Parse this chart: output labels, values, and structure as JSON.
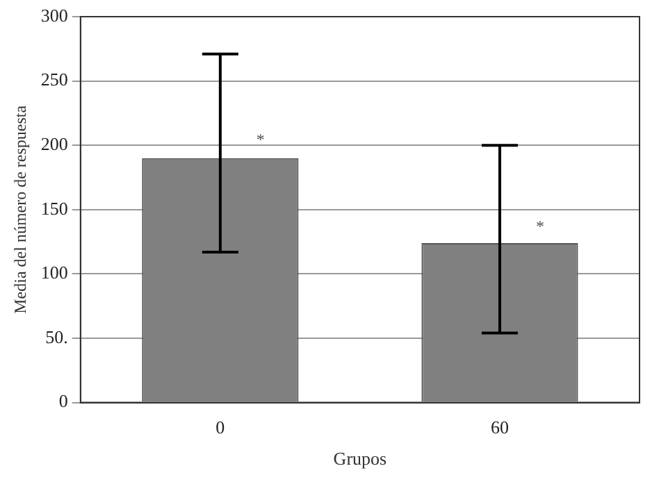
{
  "chart_data": {
    "type": "bar",
    "xlabel": "Grupos",
    "ylabel": "Media del número de respuesta",
    "categories": [
      "0",
      "60"
    ],
    "values": [
      190,
      124
    ],
    "color": "#808080",
    "errors": [
      [
        117,
        271
      ],
      [
        54,
        200
      ]
    ],
    "ylim": [
      0,
      300
    ],
    "yticks": [
      0,
      {
        "value": 50,
        "label": "50."
      },
      100,
      150,
      200,
      250,
      300
    ],
    "grid": "y",
    "legend": false,
    "annotations": [
      {
        "text": "*",
        "x": "0",
        "y": 207
      },
      {
        "text": "*",
        "x": "60",
        "y": 139
      }
    ]
  }
}
